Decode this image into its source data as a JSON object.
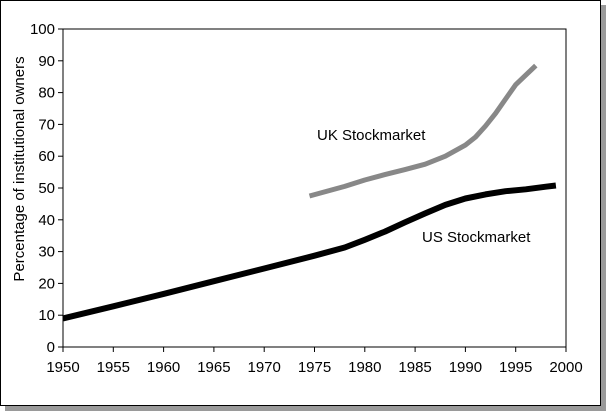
{
  "chart_data": {
    "type": "line",
    "title": "",
    "xlabel": "",
    "ylabel": "Percentage of institutional owners",
    "xlim": [
      1950,
      2000
    ],
    "ylim": [
      0,
      100
    ],
    "xticks": [
      1950,
      1955,
      1960,
      1965,
      1970,
      1975,
      1980,
      1985,
      1990,
      1995,
      2000
    ],
    "yticks": [
      0,
      10,
      20,
      30,
      40,
      50,
      60,
      70,
      80,
      90,
      100
    ],
    "grid": false,
    "legend": "none",
    "series": [
      {
        "name": "UK Stockmarket",
        "color": "#888888",
        "x": [
          1974.5,
          1978,
          1980,
          1982,
          1984,
          1986,
          1988,
          1990,
          1991,
          1992,
          1993,
          1994,
          1995,
          1996,
          1997
        ],
        "y": [
          47.5,
          50.5,
          52.5,
          54.2,
          55.8,
          57.5,
          60,
          63.5,
          66,
          69.5,
          73.5,
          78,
          82.5,
          85.5,
          88.5
        ]
      },
      {
        "name": "US Stockmarket",
        "color": "#000000",
        "x": [
          1950,
          1955,
          1960,
          1965,
          1970,
          1975,
          1978,
          1980,
          1982,
          1984,
          1986,
          1988,
          1990,
          1992,
          1994,
          1996,
          1998,
          1999
        ],
        "y": [
          9,
          12.8,
          16.7,
          20.7,
          24.7,
          28.7,
          31.3,
          33.7,
          36.3,
          39.2,
          42,
          44.7,
          46.7,
          48,
          49,
          49.6,
          50.4,
          50.8
        ]
      }
    ]
  }
}
